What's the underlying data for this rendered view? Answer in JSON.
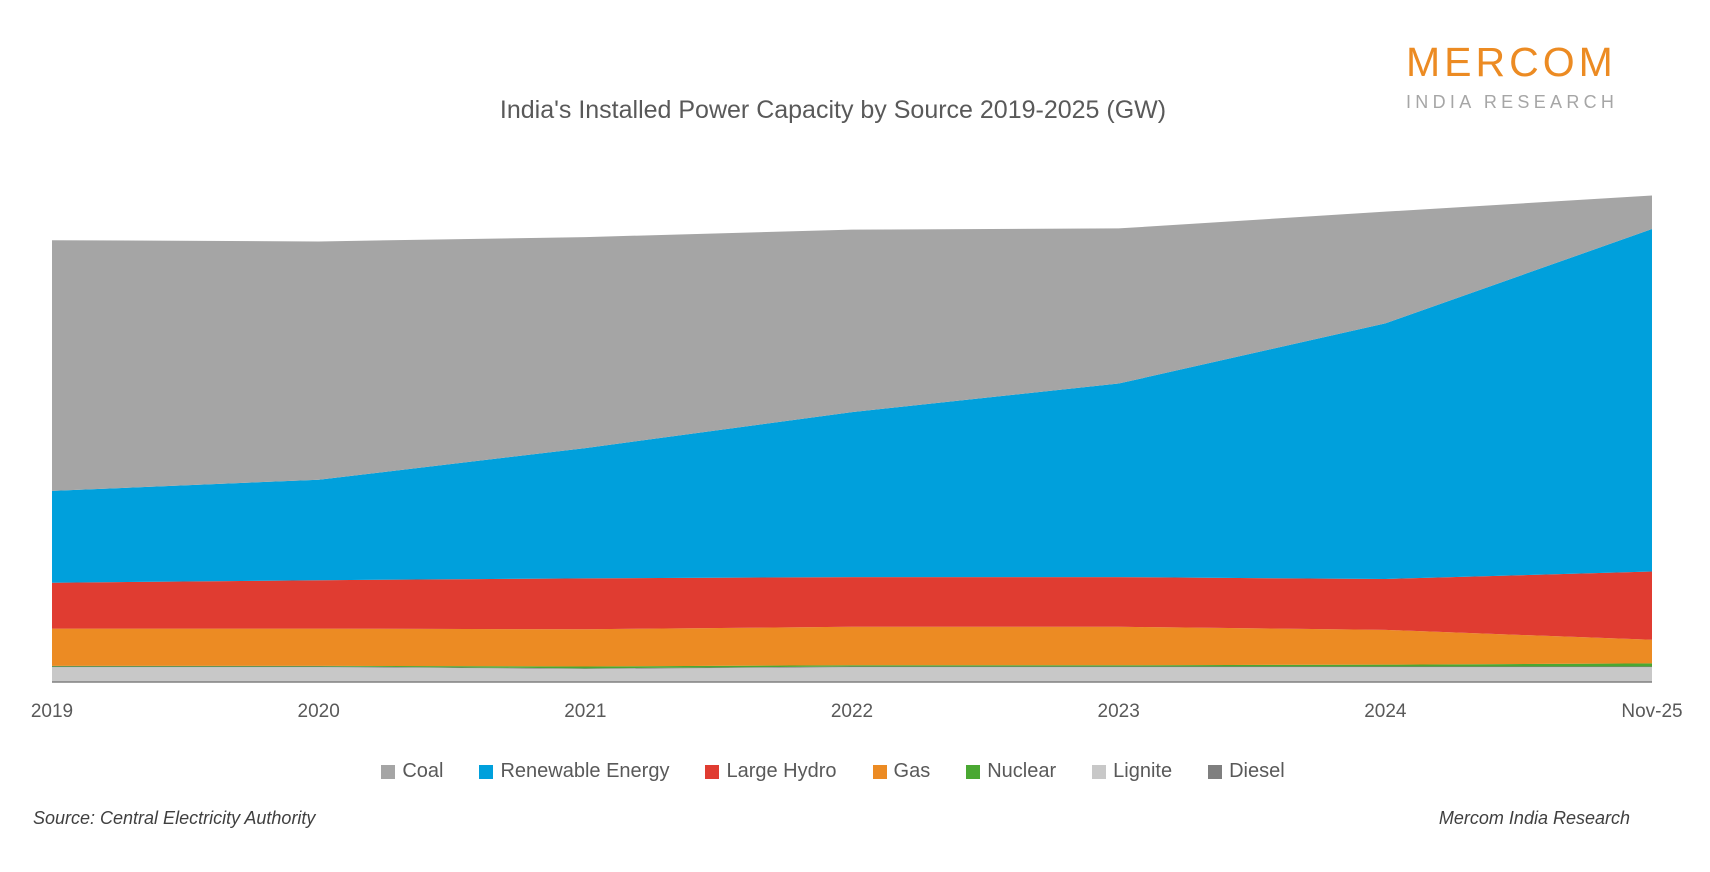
{
  "chart_data": {
    "type": "area",
    "stacked": true,
    "title": "India's Installed Power Capacity by Source 2019-2025 (GW)",
    "xlabel": "",
    "ylabel": "",
    "categories": [
      "2019",
      "2020",
      "2021",
      "2022",
      "2023",
      "2024",
      "Nov-25"
    ],
    "grid": false,
    "legend_position": "bottom",
    "series": [
      {
        "name": "Lignite",
        "color": "#c8c8c8",
        "values": [
          12,
          12,
          10.5,
          12,
          12,
          12,
          12
        ]
      },
      {
        "name": "Diesel",
        "color": "#7f7f7f",
        "values": [
          0.5,
          0.5,
          0.5,
          0.5,
          0.5,
          0.5,
          0.5
        ]
      },
      {
        "name": "Nuclear",
        "color": "#4aa832",
        "values": [
          0.5,
          0.5,
          1.5,
          1,
          1,
          1.5,
          2.5
        ]
      },
      {
        "name": "Gas",
        "color": "#ec8b23",
        "values": [
          30,
          30,
          30,
          31,
          31,
          28,
          19
        ]
      },
      {
        "name": "Large Hydro",
        "color": "#e03c31",
        "values": [
          37,
          39,
          41,
          40,
          40,
          41,
          55
        ]
      },
      {
        "name": "Renewable Energy",
        "color": "#00a0dc",
        "values": [
          74,
          81,
          105,
          133,
          156,
          206,
          276
        ]
      },
      {
        "name": "Coal",
        "color": "#a5a5a5",
        "values": [
          202,
          192,
          170,
          147,
          125,
          90,
          27
        ]
      }
    ],
    "legend_order": [
      "Coal",
      "Renewable Energy",
      "Large Hydro",
      "Gas",
      "Nuclear",
      "Lignite",
      "Diesel"
    ]
  },
  "logo": {
    "main": "MERCOM",
    "sub": "INDIA RESEARCH"
  },
  "footer": {
    "source": "Source: Central Electricity Authority",
    "credit": "Mercom India Research"
  }
}
